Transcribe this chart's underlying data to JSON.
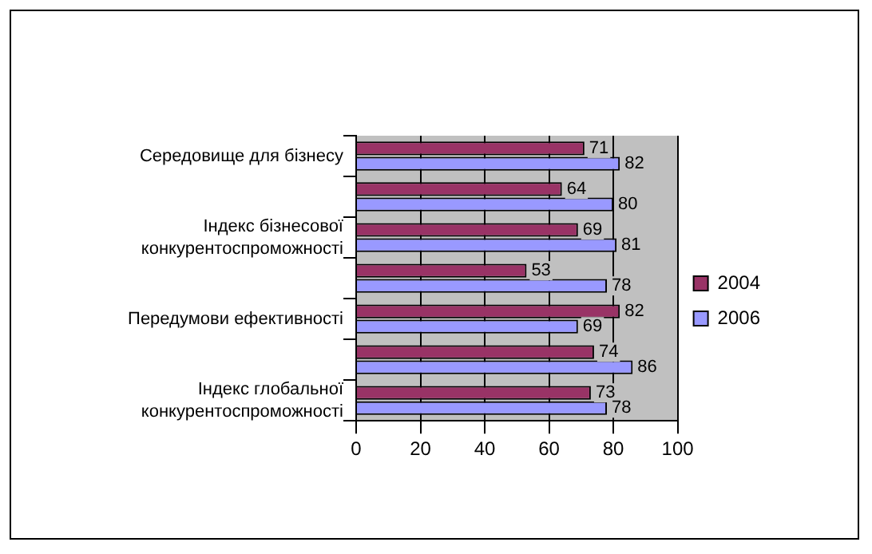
{
  "chart_data": {
    "type": "bar",
    "orientation": "horizontal",
    "categories": [
      "Середовище для бізнесу",
      null,
      "Індекс бізнесової конкурентоспроможності",
      null,
      "Передумови ефективності",
      null,
      "Індекс глобальної конкурентоспроможності"
    ],
    "series": [
      {
        "name": "2004",
        "color": "#993366",
        "values": [
          71,
          64,
          69,
          53,
          82,
          74,
          73
        ]
      },
      {
        "name": "2006",
        "color": "#9999ff",
        "values": [
          82,
          80,
          81,
          78,
          69,
          86,
          78
        ]
      }
    ],
    "xlim": [
      0,
      100
    ],
    "xticks": [
      0,
      20,
      40,
      60,
      80,
      100
    ],
    "grid": "x",
    "legend": "right",
    "data_labels": true
  }
}
